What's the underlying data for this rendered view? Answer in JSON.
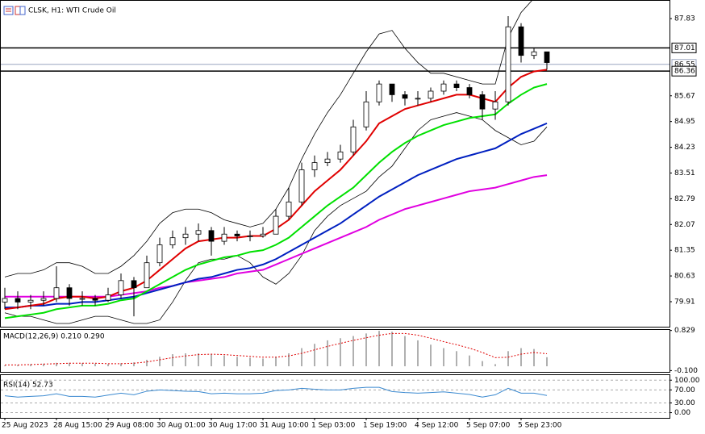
{
  "header": {
    "title": "CLSK, H1: WTI Crude Oil"
  },
  "chart_data": [
    {
      "type": "candlestick",
      "categories": [
        "25 Aug 2023",
        null,
        null,
        null,
        "28 Aug 15:00",
        null,
        null,
        null,
        "29 Aug 08:00",
        null,
        null,
        null,
        "30 Aug 01:00",
        null,
        null,
        null,
        "30 Aug 17:00",
        null,
        null,
        null,
        "31 Aug 10:00",
        null,
        null,
        null,
        "1 Sep 03:00",
        null,
        null,
        null,
        "1 Sep 19:00",
        null,
        null,
        null,
        "4 Sep 12:00",
        null,
        null,
        null,
        "5 Sep 07:00",
        null,
        null,
        null,
        "5 Sep 23:00",
        null,
        null
      ],
      "open": [
        79.9,
        80.0,
        79.9,
        79.95,
        80.0,
        80.3,
        80.0,
        80.0,
        79.95,
        80.1,
        80.5,
        80.3,
        81.0,
        81.5,
        81.7,
        81.8,
        81.9,
        81.6,
        81.8,
        81.75,
        81.75,
        81.8,
        82.3,
        82.7,
        83.6,
        83.8,
        83.9,
        84.1,
        84.8,
        85.5,
        86.0,
        85.7,
        85.6,
        85.6,
        85.8,
        86.0,
        85.9,
        85.7,
        85.3,
        85.5,
        87.6,
        86.8,
        86.9
      ],
      "high": [
        80.3,
        80.2,
        80.1,
        80.2,
        80.9,
        80.4,
        80.2,
        80.1,
        80.3,
        80.7,
        80.6,
        81.2,
        81.7,
        81.9,
        82.0,
        82.1,
        82.0,
        82.0,
        81.9,
        81.9,
        82.0,
        82.5,
        83.1,
        83.8,
        84.0,
        84.1,
        84.3,
        85.0,
        85.8,
        86.1,
        86.0,
        85.8,
        85.8,
        85.9,
        86.1,
        86.1,
        86.0,
        85.8,
        85.8,
        87.9,
        87.7,
        87.0,
        86.9
      ],
      "low": [
        79.7,
        79.7,
        79.7,
        79.8,
        79.9,
        79.8,
        79.8,
        79.8,
        79.9,
        80.0,
        79.5,
        80.3,
        80.9,
        81.4,
        81.5,
        81.6,
        81.2,
        81.5,
        81.6,
        81.6,
        81.7,
        81.8,
        82.2,
        82.6,
        83.4,
        83.7,
        83.8,
        84.0,
        84.7,
        85.4,
        85.5,
        85.4,
        85.4,
        85.5,
        85.7,
        85.8,
        85.6,
        85.0,
        85.0,
        85.4,
        86.6,
        86.7,
        86.4
      ],
      "close": [
        80.0,
        79.9,
        79.95,
        80.0,
        80.3,
        80.0,
        80.0,
        79.95,
        80.1,
        80.5,
        80.3,
        81.0,
        81.5,
        81.7,
        81.8,
        81.9,
        81.6,
        81.8,
        81.75,
        81.75,
        81.8,
        82.3,
        82.7,
        83.6,
        83.8,
        83.9,
        84.1,
        84.8,
        85.5,
        86.0,
        85.7,
        85.6,
        85.6,
        85.8,
        86.0,
        85.9,
        85.7,
        85.3,
        85.5,
        87.6,
        86.8,
        86.9,
        86.6
      ],
      "series": [
        {
          "color": "#000000",
          "values": [
            80.6,
            80.7,
            80.7,
            80.8,
            81.0,
            81.0,
            80.9,
            80.7,
            80.7,
            80.9,
            81.2,
            81.6,
            82.1,
            82.4,
            82.5,
            82.5,
            82.4,
            82.2,
            82.1,
            82.0,
            82.1,
            82.5,
            83.1,
            83.9,
            84.6,
            85.2,
            85.7,
            86.3,
            86.9,
            87.4,
            87.5,
            87.0,
            86.6,
            86.3,
            86.3,
            86.2,
            86.1,
            86.0,
            86.0,
            87.3,
            88.0,
            88.4,
            88.5
          ]
        },
        {
          "color": "#000000",
          "values": [
            79.6,
            79.5,
            79.5,
            79.4,
            79.3,
            79.3,
            79.4,
            79.5,
            79.5,
            79.4,
            79.3,
            79.3,
            79.4,
            79.9,
            80.5,
            81.0,
            81.1,
            81.1,
            81.2,
            81.0,
            80.6,
            80.4,
            80.7,
            81.2,
            81.9,
            82.3,
            82.6,
            82.8,
            83.0,
            83.4,
            83.7,
            84.2,
            84.7,
            85.0,
            85.1,
            85.2,
            85.1,
            85.0,
            84.7,
            84.5,
            84.3,
            84.4,
            84.8
          ]
        },
        {
          "color": "#e000e0",
          "values": [
            80.05,
            80.05,
            80.05,
            80.05,
            80.05,
            80.05,
            80.05,
            80.05,
            80.05,
            80.1,
            80.15,
            80.2,
            80.3,
            80.35,
            80.45,
            80.5,
            80.55,
            80.6,
            80.7,
            80.75,
            80.8,
            80.95,
            81.1,
            81.25,
            81.4,
            81.55,
            81.7,
            81.85,
            82.0,
            82.2,
            82.35,
            82.5,
            82.6,
            82.7,
            82.8,
            82.9,
            83.0,
            83.05,
            83.1,
            83.2,
            83.3,
            83.4,
            83.45
          ]
        },
        {
          "color": "#0020c0",
          "values": [
            79.75,
            79.75,
            79.8,
            79.8,
            79.85,
            79.85,
            79.9,
            79.9,
            79.95,
            80.0,
            80.05,
            80.15,
            80.25,
            80.35,
            80.45,
            80.55,
            80.6,
            80.7,
            80.8,
            80.85,
            80.95,
            81.1,
            81.3,
            81.5,
            81.7,
            81.9,
            82.1,
            82.35,
            82.6,
            82.85,
            83.05,
            83.25,
            83.45,
            83.6,
            83.75,
            83.9,
            84.0,
            84.1,
            84.2,
            84.4,
            84.6,
            84.75,
            84.9
          ]
        },
        {
          "color": "#00e000",
          "values": [
            79.45,
            79.5,
            79.55,
            79.6,
            79.7,
            79.75,
            79.8,
            79.8,
            79.85,
            79.95,
            80.0,
            80.2,
            80.4,
            80.6,
            80.8,
            80.95,
            81.05,
            81.15,
            81.2,
            81.3,
            81.35,
            81.5,
            81.7,
            82.0,
            82.3,
            82.6,
            82.85,
            83.1,
            83.45,
            83.8,
            84.1,
            84.35,
            84.55,
            84.7,
            84.85,
            84.95,
            85.05,
            85.1,
            85.15,
            85.45,
            85.7,
            85.9,
            86.0
          ]
        },
        {
          "color": "#e00000",
          "values": [
            79.7,
            79.75,
            79.8,
            79.85,
            80.0,
            80.05,
            80.05,
            80.0,
            80.05,
            80.2,
            80.3,
            80.5,
            80.8,
            81.1,
            81.4,
            81.6,
            81.65,
            81.7,
            81.7,
            81.75,
            81.75,
            81.95,
            82.2,
            82.6,
            83.0,
            83.3,
            83.6,
            84.0,
            84.4,
            84.9,
            85.1,
            85.3,
            85.4,
            85.5,
            85.6,
            85.7,
            85.7,
            85.6,
            85.5,
            85.9,
            86.2,
            86.35,
            86.4
          ]
        }
      ],
      "ylim": [
        79.21,
        88.35
      ],
      "yticks": [
        87.83,
        85.67,
        84.95,
        84.23,
        83.51,
        82.79,
        82.07,
        81.35,
        80.63,
        79.91
      ],
      "hlines": [
        87.01,
        86.36
      ],
      "bid": 86.55
    },
    {
      "type": "macd",
      "title": "MACD(12,26,9) 0.210 0.290",
      "histogram": [
        0.02,
        0.03,
        0.05,
        0.06,
        0.08,
        0.08,
        0.07,
        0.06,
        0.05,
        0.07,
        0.09,
        0.15,
        0.22,
        0.28,
        0.3,
        0.3,
        0.28,
        0.25,
        0.22,
        0.2,
        0.18,
        0.22,
        0.3,
        0.42,
        0.52,
        0.6,
        0.65,
        0.7,
        0.76,
        0.82,
        0.8,
        0.7,
        0.6,
        0.5,
        0.42,
        0.35,
        0.25,
        0.12,
        0.05,
        0.35,
        0.42,
        0.4,
        0.21
      ],
      "signal": [
        0.03,
        0.03,
        0.04,
        0.05,
        0.06,
        0.07,
        0.07,
        0.07,
        0.06,
        0.06,
        0.07,
        0.1,
        0.15,
        0.2,
        0.24,
        0.27,
        0.28,
        0.27,
        0.25,
        0.23,
        0.21,
        0.21,
        0.24,
        0.3,
        0.38,
        0.46,
        0.53,
        0.6,
        0.66,
        0.72,
        0.76,
        0.76,
        0.72,
        0.65,
        0.57,
        0.5,
        0.42,
        0.32,
        0.2,
        0.21,
        0.28,
        0.32,
        0.29
      ],
      "ylim": [
        -0.13,
        0.86
      ],
      "yticks": [
        0.829,
        {
          "value": -0.1,
          "label": "-0.100"
        }
      ]
    },
    {
      "type": "line",
      "title": "RSI(14) 52.73",
      "color": "#3c8ad0",
      "values": [
        52,
        48,
        50,
        52,
        58,
        50,
        50,
        48,
        54,
        60,
        55,
        66,
        70,
        68,
        66,
        65,
        58,
        60,
        58,
        58,
        60,
        68,
        70,
        75,
        72,
        70,
        70,
        75,
        78,
        78,
        65,
        62,
        60,
        62,
        64,
        60,
        56,
        48,
        55,
        75,
        60,
        60,
        52.73
      ],
      "ylim": [
        -16,
        118
      ],
      "yticks": [
        {
          "value": 100,
          "label": "100.00"
        },
        {
          "value": 70,
          "label": "70.00"
        },
        {
          "value": 30,
          "label": "30.00"
        },
        {
          "value": 0,
          "label": "0.00"
        }
      ]
    }
  ]
}
